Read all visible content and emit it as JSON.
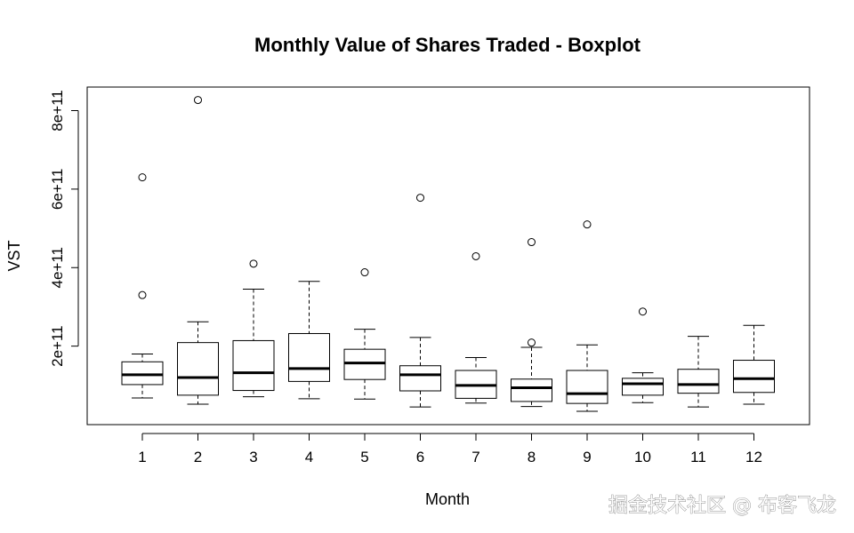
{
  "chart_data": {
    "type": "boxplot",
    "title": "Monthly Value of Shares Traded - Boxplot",
    "xlabel": "Month",
    "ylabel": "VST",
    "ylim": [
      0,
      860000000000
    ],
    "y_ticks": [
      200000000000,
      400000000000,
      600000000000,
      800000000000
    ],
    "y_tick_labels": [
      "2e+11",
      "4e+11",
      "6e+11",
      "8e+11"
    ],
    "categories": [
      "1",
      "2",
      "3",
      "4",
      "5",
      "6",
      "7",
      "8",
      "9",
      "10",
      "11",
      "12"
    ],
    "boxes": [
      {
        "whisker_low": 68000000000,
        "q1": 102000000000,
        "median": 127000000000,
        "q3": 160000000000,
        "whisker_high": 180000000000,
        "outliers": [
          330000000000,
          630000000000
        ]
      },
      {
        "whisker_low": 52000000000,
        "q1": 75000000000,
        "median": 120000000000,
        "q3": 209000000000,
        "whisker_high": 262000000000,
        "outliers": [
          827000000000
        ]
      },
      {
        "whisker_low": 71000000000,
        "q1": 87000000000,
        "median": 132000000000,
        "q3": 214000000000,
        "whisker_high": 345000000000,
        "outliers": [
          410000000000
        ]
      },
      {
        "whisker_low": 66000000000,
        "q1": 110000000000,
        "median": 143000000000,
        "q3": 232000000000,
        "whisker_high": 365000000000,
        "outliers": []
      },
      {
        "whisker_low": 65000000000,
        "q1": 115000000000,
        "median": 157000000000,
        "q3": 192000000000,
        "whisker_high": 243000000000,
        "outliers": [
          388000000000
        ]
      },
      {
        "whisker_low": 45000000000,
        "q1": 86000000000,
        "median": 127000000000,
        "q3": 150000000000,
        "whisker_high": 222000000000,
        "outliers": [
          578000000000
        ]
      },
      {
        "whisker_low": 55000000000,
        "q1": 67000000000,
        "median": 100000000000,
        "q3": 138000000000,
        "whisker_high": 171000000000,
        "outliers": [
          429000000000
        ]
      },
      {
        "whisker_low": 46000000000,
        "q1": 59000000000,
        "median": 94000000000,
        "q3": 116000000000,
        "whisker_high": 197000000000,
        "outliers": [
          209000000000,
          465000000000
        ]
      },
      {
        "whisker_low": 34000000000,
        "q1": 54000000000,
        "median": 79000000000,
        "q3": 138000000000,
        "whisker_high": 203000000000,
        "outliers": [
          510000000000
        ]
      },
      {
        "whisker_low": 56000000000,
        "q1": 75000000000,
        "median": 104000000000,
        "q3": 118000000000,
        "whisker_high": 132000000000,
        "outliers": [
          288000000000
        ]
      },
      {
        "whisker_low": 45000000000,
        "q1": 80000000000,
        "median": 102000000000,
        "q3": 141000000000,
        "whisker_high": 225000000000,
        "outliers": []
      },
      {
        "whisker_low": 52000000000,
        "q1": 82000000000,
        "median": 117000000000,
        "q3": 164000000000,
        "whisker_high": 253000000000,
        "outliers": []
      }
    ],
    "grid": false,
    "legend": "none"
  },
  "watermark": "掘金技术社区 @ 布客飞龙"
}
